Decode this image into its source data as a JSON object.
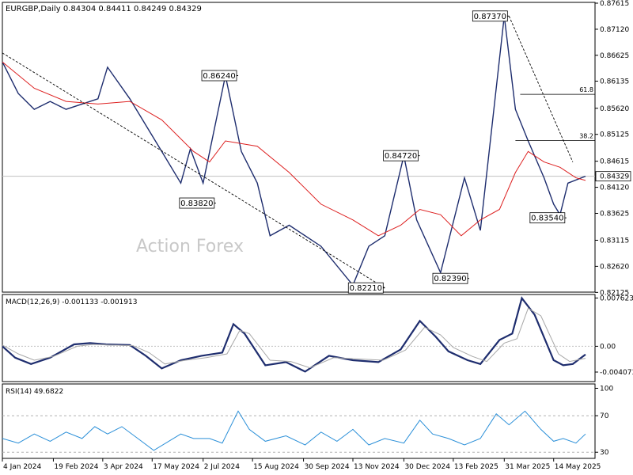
{
  "chart_data": {
    "type": "line",
    "symbol": "EURGBP,Daily",
    "ohlc": [
      "0.84304",
      "0.84411",
      "0.84249",
      "0.84329"
    ],
    "watermark": "Action Forex",
    "last_price": "0.84329",
    "x_tick_labels": [
      "4 Jan 2024",
      "19 Feb 2024",
      "3 Apr 2024",
      "17 May 2024",
      "2 Jul 2024",
      "15 Aug 2024",
      "30 Sep 2024",
      "13 Nov 2024",
      "30 Dec 2024",
      "13 Feb 2025",
      "31 Mar 2025",
      "14 May 2025"
    ],
    "x_tick_positions": [
      0,
      32,
      63,
      94,
      126,
      157,
      189,
      220,
      252,
      283,
      315,
      346
    ],
    "n_days": 367,
    "price_axis": {
      "range": [
        0.8213,
        0.8763
      ],
      "ticks": [
        "0.87615",
        "0.87120",
        "0.86625",
        "0.86135",
        "0.85620",
        "0.85125",
        "0.84615",
        "0.84120",
        "0.83625",
        "0.83115",
        "0.82620",
        "0.82125"
      ]
    },
    "price_series": [
      {
        "name": "",
        "color": "#1e2d6e",
        "x": [
          0,
          10,
          20,
          30,
          40,
          50,
          60,
          66,
          80,
          100,
          112,
          118,
          126,
          140,
          150,
          160,
          168,
          180,
          200,
          220,
          230,
          240,
          252,
          260,
          275,
          290,
          300,
          315,
          322,
          330,
          340,
          346,
          350,
          355,
          366
        ],
        "y": [
          0.865,
          0.859,
          0.856,
          0.8575,
          0.856,
          0.857,
          0.858,
          0.864,
          0.858,
          0.848,
          0.842,
          0.8485,
          0.842,
          0.8624,
          0.848,
          0.842,
          0.832,
          0.834,
          0.83,
          0.8226,
          0.83,
          0.832,
          0.8472,
          0.835,
          0.825,
          0.843,
          0.833,
          0.8737,
          0.856,
          0.85,
          0.843,
          0.838,
          0.836,
          0.842,
          0.8433
        ]
      },
      {
        "name": "",
        "color": "#dd1f1f",
        "x": [
          0,
          20,
          40,
          60,
          80,
          100,
          120,
          130,
          140,
          160,
          180,
          200,
          220,
          236,
          250,
          262,
          275,
          288,
          300,
          312,
          322,
          330,
          340,
          350,
          360,
          366
        ],
        "y": [
          0.865,
          0.86,
          0.8575,
          0.857,
          0.8575,
          0.854,
          0.848,
          0.846,
          0.85,
          0.849,
          0.844,
          0.838,
          0.835,
          0.832,
          0.834,
          0.837,
          0.836,
          0.832,
          0.835,
          0.837,
          0.844,
          0.848,
          0.846,
          0.845,
          0.843,
          0.8425
        ]
      }
    ],
    "trendlines": [
      {
        "x": [
          0,
          240
        ],
        "y": [
          0.8667,
          0.8221
        ]
      },
      {
        "x": [
          318,
          358
        ],
        "y": [
          0.8737,
          0.846
        ]
      }
    ],
    "fib_levels": [
      {
        "label": "61.8",
        "value": 0.85885,
        "x_start": 325
      },
      {
        "label": "38.2",
        "value": 0.8501,
        "x_start": 322
      }
    ],
    "price_labels": [
      {
        "text": "0.87370",
        "x": 318,
        "y": 0.8737,
        "side": "left"
      },
      {
        "text": "0.86240",
        "x": 148,
        "y": 0.8624,
        "side": "left"
      },
      {
        "text": "0.84720",
        "x": 262,
        "y": 0.8472,
        "side": "left"
      },
      {
        "text": "0.83820",
        "x": 134,
        "y": 0.8382,
        "side": "left"
      },
      {
        "text": "0.83540",
        "x": 354,
        "y": 0.8354,
        "side": "left"
      },
      {
        "text": "0.82390",
        "x": 293,
        "y": 0.8239,
        "side": "left"
      },
      {
        "text": "0.82210",
        "x": 240,
        "y": 0.8221,
        "side": "left"
      }
    ],
    "macd": {
      "label": "MACD(12,26,9) -0.001133 -0.001913",
      "range": [
        -0.0052,
        0.0078
      ],
      "ticks": [
        "0.007623",
        "0.00",
        "-0.004073"
      ],
      "series": [
        {
          "name": "",
          "color": "#1e2d6e",
          "x": [
            0,
            8,
            18,
            30,
            45,
            55,
            65,
            80,
            90,
            100,
            112,
            125,
            138,
            145,
            152,
            165,
            178,
            190,
            205,
            220,
            236,
            250,
            262,
            272,
            280,
            292,
            300,
            312,
            320,
            326,
            334,
            346,
            352,
            358,
            366
          ],
          "y": [
            0.0,
            -0.0018,
            -0.0028,
            -0.0018,
            0.0003,
            0.0005,
            0.0003,
            0.0002,
            -0.0015,
            -0.0035,
            -0.0022,
            -0.0015,
            -0.001,
            0.0035,
            0.002,
            -0.003,
            -0.0025,
            -0.004,
            -0.0015,
            -0.0022,
            -0.0025,
            -0.0005,
            0.004,
            0.0015,
            -0.0008,
            -0.0022,
            -0.0028,
            0.001,
            0.002,
            0.0076,
            0.005,
            -0.0022,
            -0.003,
            -0.0028,
            -0.0013
          ]
        },
        {
          "name": "",
          "color": "#a8a8a8",
          "x": [
            0,
            10,
            20,
            32,
            47,
            57,
            67,
            82,
            92,
            102,
            115,
            128,
            141,
            149,
            155,
            168,
            181,
            193,
            208,
            223,
            239,
            253,
            265,
            275,
            283,
            295,
            304,
            315,
            323,
            330,
            338,
            349,
            356,
            366
          ],
          "y": [
            0.0002,
            -0.0012,
            -0.0022,
            -0.0016,
            0.0,
            0.0003,
            0.0002,
            0.0001,
            -0.001,
            -0.0028,
            -0.0022,
            -0.0018,
            -0.0012,
            0.0025,
            0.002,
            -0.0022,
            -0.0024,
            -0.0034,
            -0.0018,
            -0.002,
            -0.0022,
            -0.0006,
            0.003,
            0.0018,
            -0.0002,
            -0.0016,
            -0.0024,
            0.0005,
            0.0012,
            0.006,
            0.0048,
            -0.0012,
            -0.0024,
            -0.0019
          ]
        }
      ]
    },
    "rsi": {
      "label": "RSI(14) 49.6822",
      "range": [
        25,
        103
      ],
      "ticks": [
        "100",
        "70",
        "30"
      ],
      "series": [
        {
          "name": "",
          "color": "#2a8fd8",
          "x": [
            0,
            10,
            20,
            30,
            40,
            50,
            58,
            66,
            75,
            85,
            95,
            112,
            120,
            130,
            138,
            148,
            155,
            165,
            178,
            190,
            200,
            210,
            220,
            230,
            240,
            252,
            262,
            270,
            280,
            290,
            300,
            310,
            318,
            328,
            338,
            346,
            352,
            360,
            366
          ],
          "y": [
            45,
            40,
            50,
            42,
            52,
            45,
            58,
            50,
            58,
            45,
            32,
            50,
            45,
            45,
            40,
            75,
            55,
            42,
            48,
            38,
            52,
            42,
            55,
            38,
            45,
            40,
            65,
            50,
            45,
            38,
            45,
            72,
            60,
            75,
            55,
            42,
            45,
            40,
            50
          ]
        }
      ]
    }
  }
}
